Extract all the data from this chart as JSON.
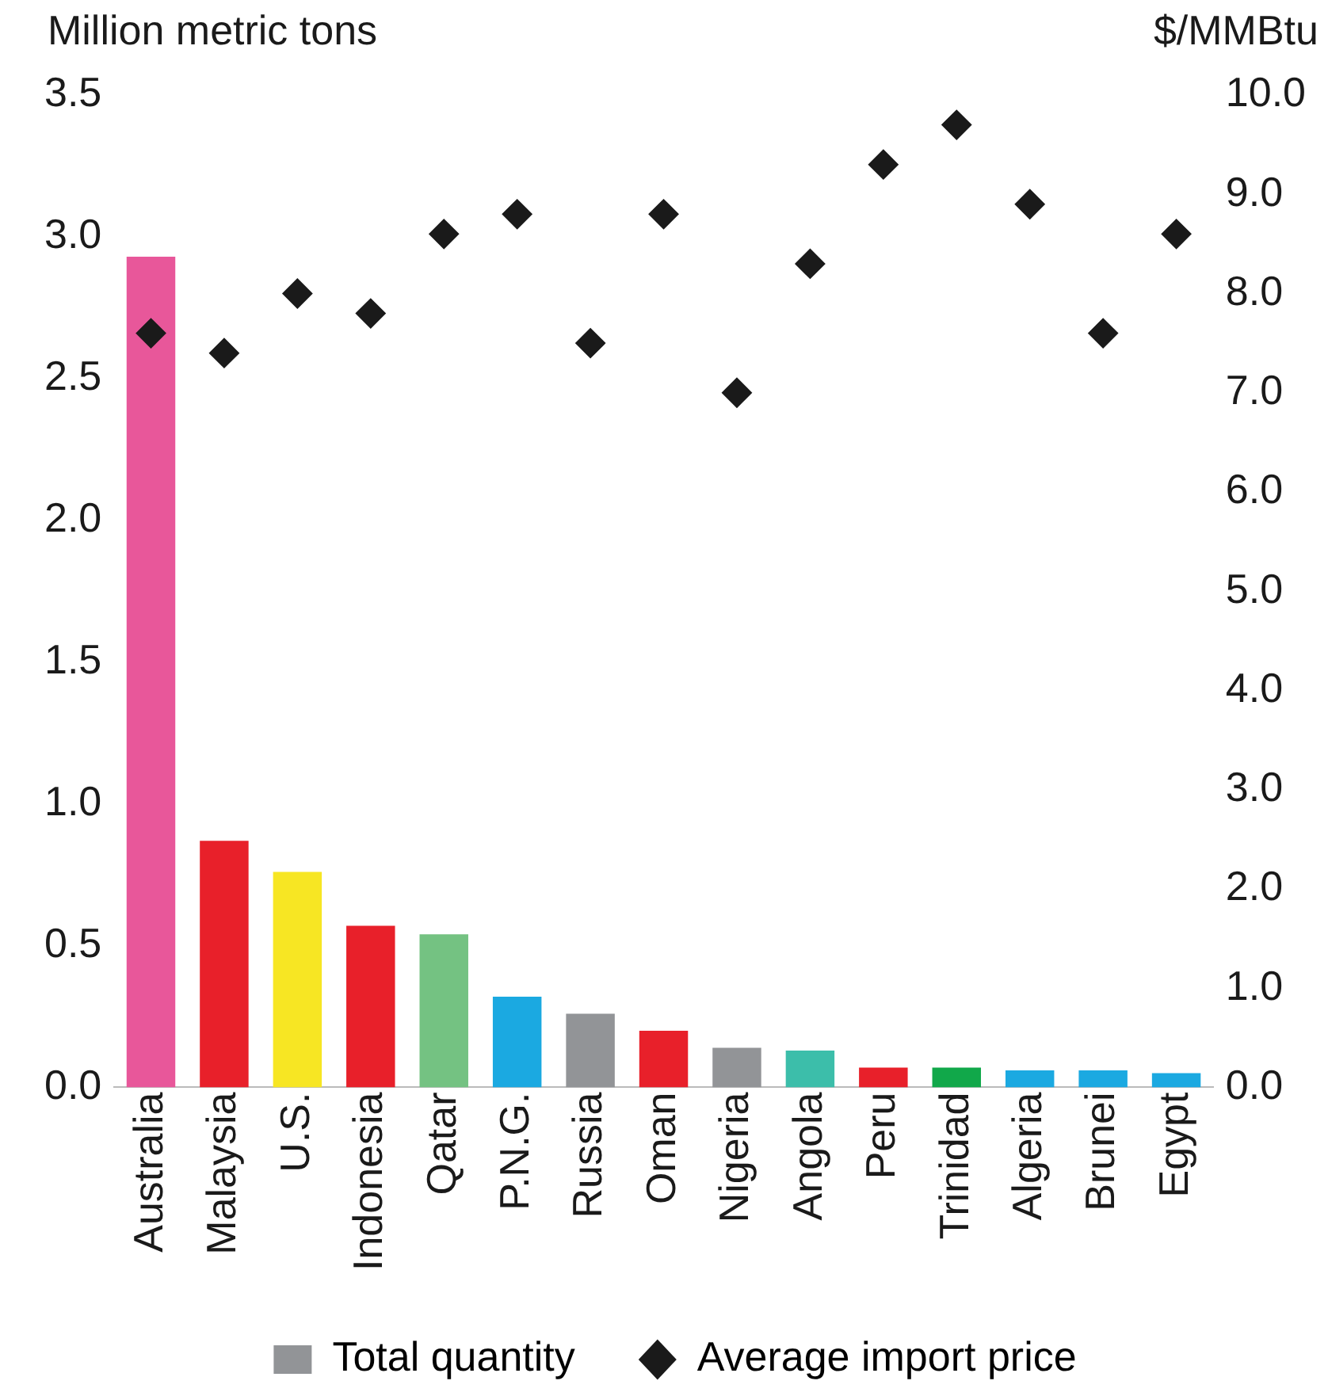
{
  "chart_data": {
    "type": "bar",
    "ylabel": "Million metric tons",
    "y2label": "$/MMBtu",
    "categories": [
      "Australia",
      "Malaysia",
      "U.S.",
      "Indonesia",
      "Qatar",
      "P.N.G.",
      "Russia",
      "Oman",
      "Nigeria",
      "Angola",
      "Peru",
      "Trinidad",
      "Algeria",
      "Brunei",
      "Egypt"
    ],
    "series": [
      {
        "name": "Total quantity",
        "color": "#929497",
        "colors": [
          "#e8579a",
          "#e8202a",
          "#f7e623",
          "#e8202a",
          "#74c282",
          "#1ba9e1",
          "#929497",
          "#e8202a",
          "#929497",
          "#3cbeaa",
          "#e8202a",
          "#11a84a",
          "#1ba9e1",
          "#1ba9e1",
          "#1ba9e1"
        ],
        "values": [
          2.93,
          0.87,
          0.76,
          0.57,
          0.54,
          0.32,
          0.26,
          0.2,
          0.14,
          0.13,
          0.07,
          0.07,
          0.06,
          0.06,
          0.05
        ]
      },
      {
        "name": "Average import price",
        "type": "scatter",
        "axis": "y2",
        "marker": "diamond",
        "color": "#1a1a1a",
        "values": [
          7.6,
          7.4,
          8.0,
          7.8,
          8.6,
          8.8,
          7.5,
          8.8,
          7.0,
          8.3,
          9.3,
          9.7,
          8.9,
          7.6,
          8.6
        ]
      }
    ],
    "ylim": [
      0,
      3.5
    ],
    "yticks": [
      {
        "value": 0,
        "label": "0.0"
      },
      {
        "value": 0.5,
        "label": "0.5"
      },
      {
        "value": 1,
        "label": "1.0"
      },
      {
        "value": 1.5,
        "label": "1.5"
      },
      {
        "value": 2,
        "label": "2.0"
      },
      {
        "value": 2.5,
        "label": "2.5"
      },
      {
        "value": 3,
        "label": "3.0"
      },
      {
        "value": 3.5,
        "label": "3.5"
      }
    ],
    "y2lim": [
      0,
      10
    ],
    "y2ticks": [
      {
        "value": 0,
        "label": "0.0"
      },
      {
        "value": 1,
        "label": "1.0"
      },
      {
        "value": 2,
        "label": "2.0"
      },
      {
        "value": 3,
        "label": "3.0"
      },
      {
        "value": 4,
        "label": "4.0"
      },
      {
        "value": 5,
        "label": "5.0"
      },
      {
        "value": 6,
        "label": "6.0"
      },
      {
        "value": 7,
        "label": "7.0"
      },
      {
        "value": 8,
        "label": "8.0"
      },
      {
        "value": 9,
        "label": "9.0"
      },
      {
        "value": 10,
        "label": "10.0"
      }
    ],
    "grid": false,
    "legend": "bottom"
  }
}
